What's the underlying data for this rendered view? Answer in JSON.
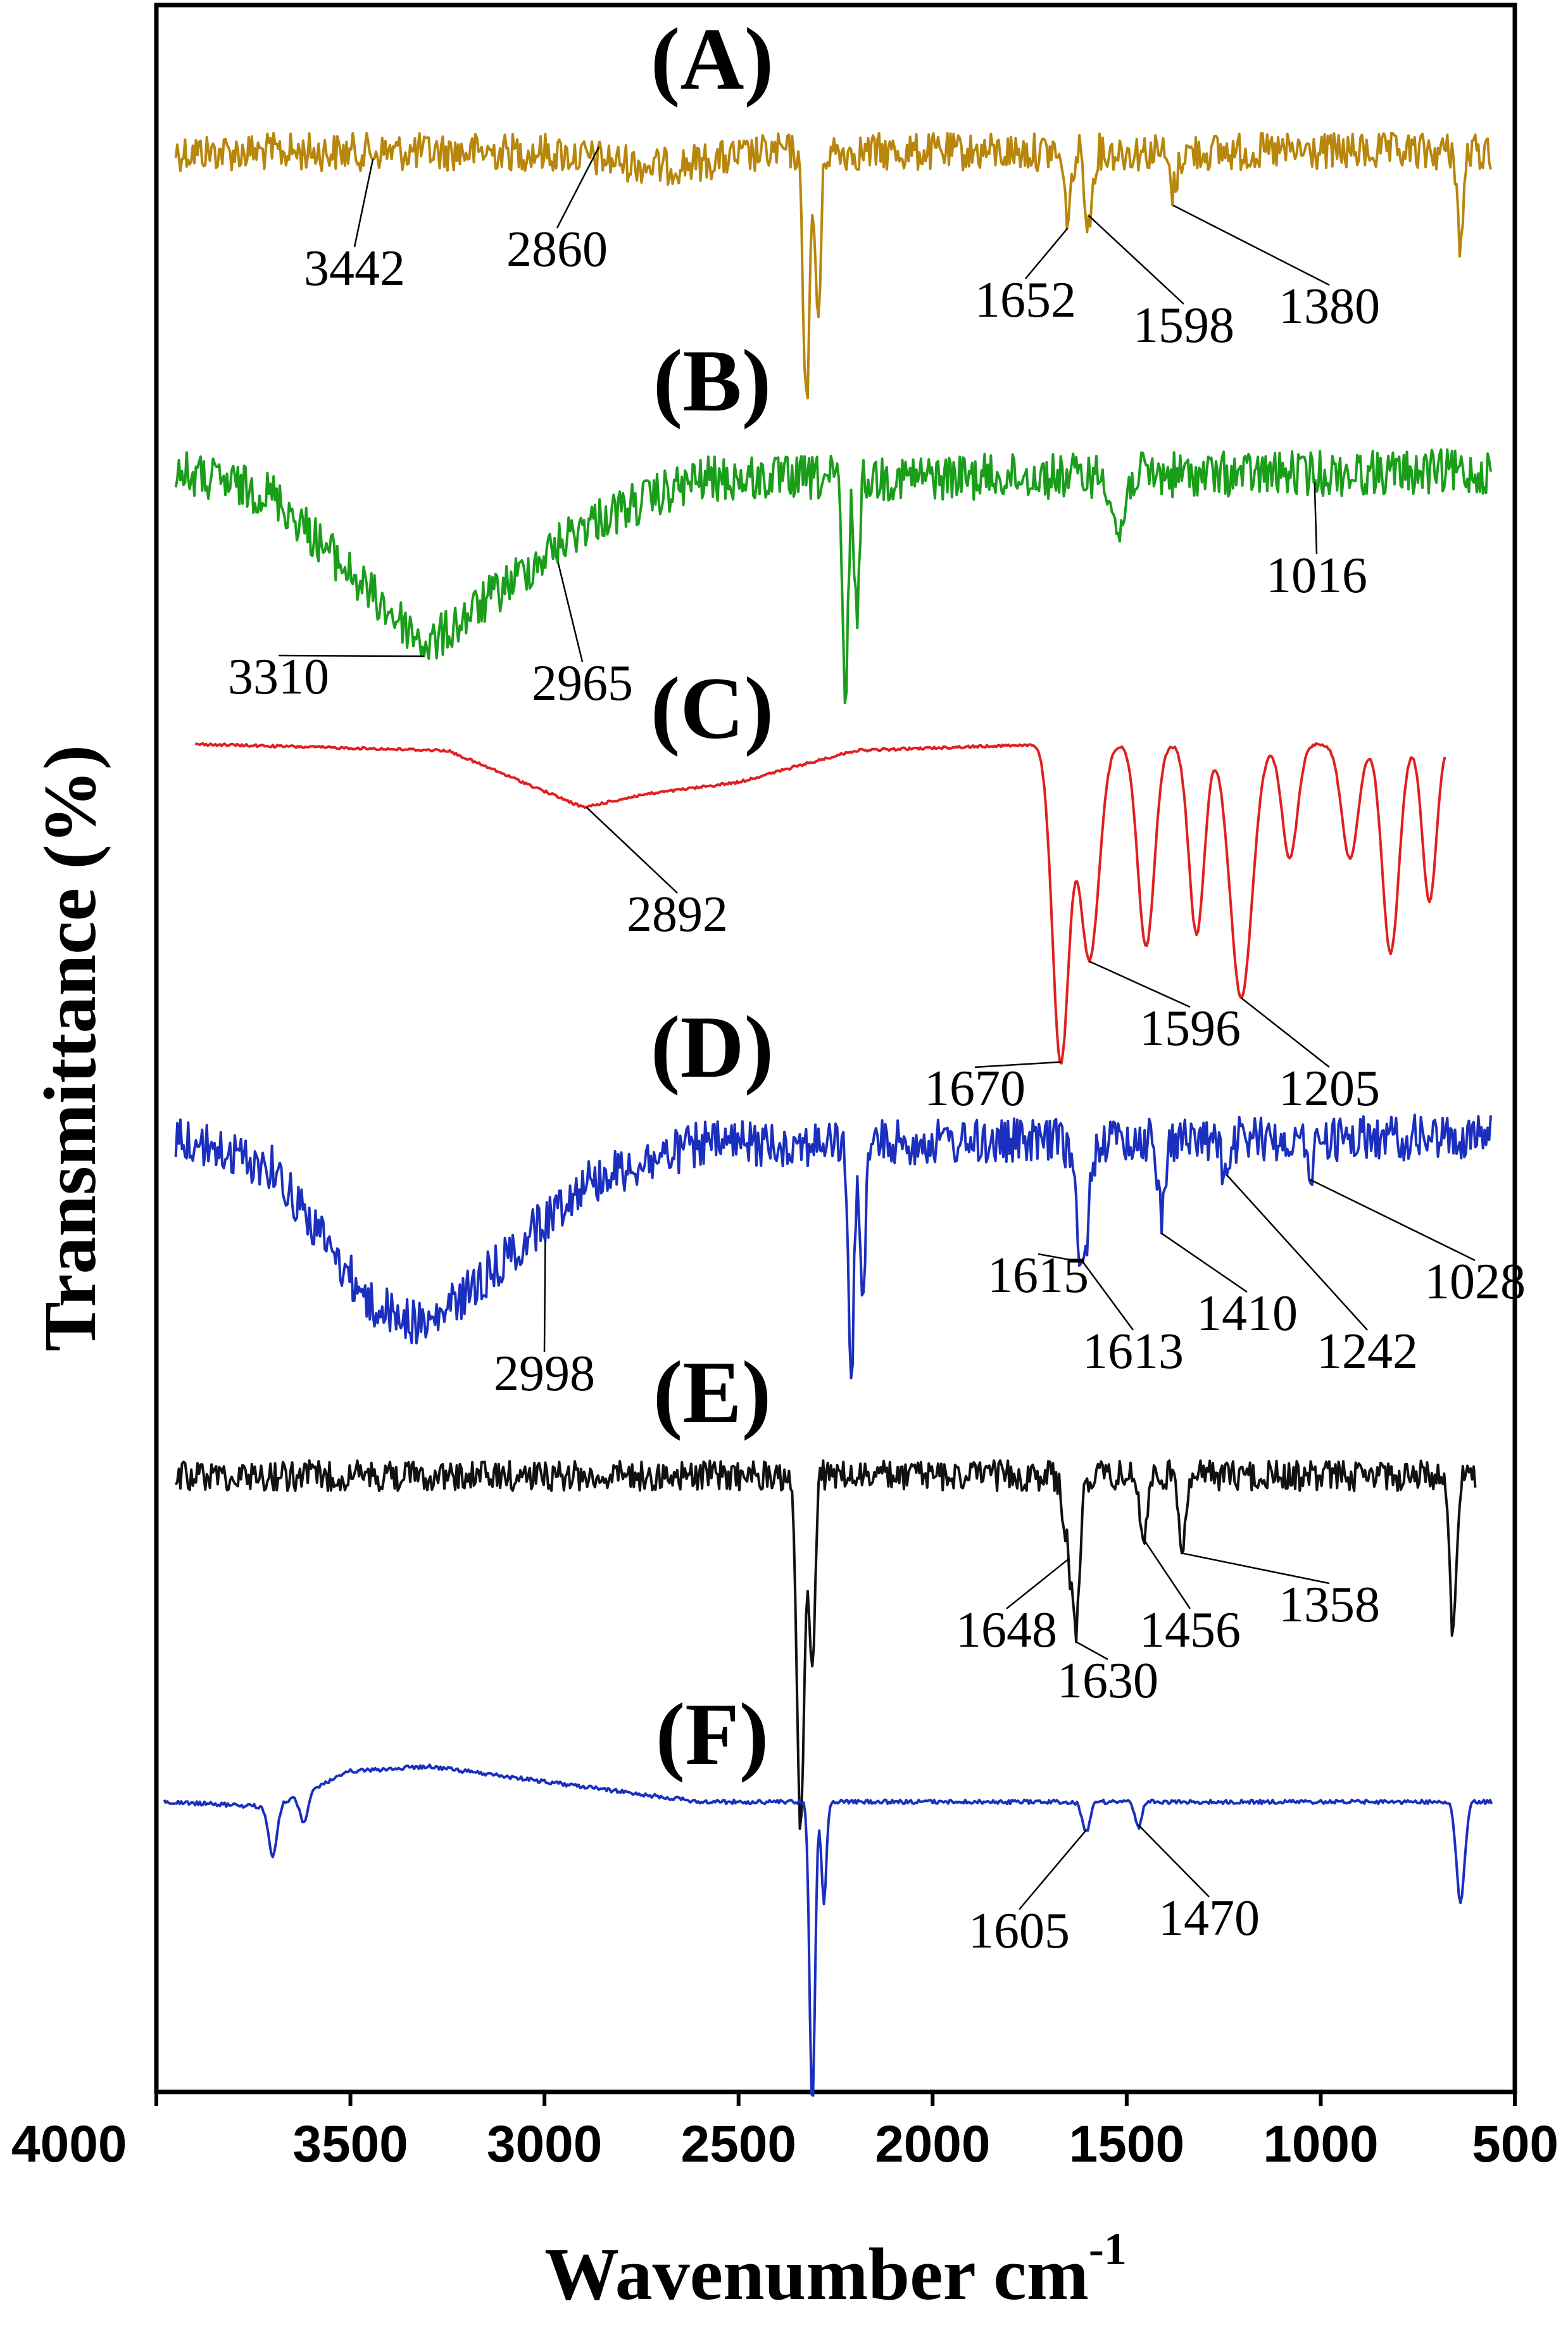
{
  "chart_data": {
    "type": "line",
    "title": "",
    "xlabel": "Wavenumber cm",
    "xlabel_superscript": "-1",
    "ylabel": "Transmittance (%)",
    "xlim": [
      4000,
      500
    ],
    "x_ticks": [
      4000,
      3500,
      3000,
      2500,
      2000,
      1500,
      1000,
      500
    ],
    "y_ticks": [],
    "grid": false,
    "legend": "none",
    "series": [
      {
        "name": "(A)",
        "color": "#b8860b",
        "x_range": [
          3950,
          560
        ],
        "noise": 0.5,
        "baseline": [
          [
            3950,
            0
          ],
          [
            3000,
            0
          ],
          [
            2700,
            0.2
          ],
          [
            2400,
            0
          ],
          [
            560,
            0
          ]
        ],
        "peaks": [
          {
            "x": 2325,
            "depth": 3.2,
            "width": 12
          },
          {
            "x": 2295,
            "depth": 2.2,
            "width": 10
          },
          {
            "x": 1652,
            "depth": 0.8,
            "width": 14
          },
          {
            "x": 1598,
            "depth": 1.0,
            "width": 12
          },
          {
            "x": 1380,
            "depth": 0.5,
            "width": 15
          },
          {
            "x": 640,
            "depth": 1.3,
            "width": 10
          }
        ],
        "annotations": [
          {
            "text": "3442",
            "x": 3442
          },
          {
            "text": "2860",
            "x": 2860
          },
          {
            "text": "1652",
            "x": 1652
          },
          {
            "text": "1598",
            "x": 1598
          },
          {
            "text": "1380",
            "x": 1380
          }
        ]
      },
      {
        "name": "(B)",
        "color": "#1a9e1a",
        "x_range": [
          3950,
          560
        ],
        "noise": 0.6,
        "baseline": [
          [
            3950,
            0
          ],
          [
            3700,
            0.3
          ],
          [
            3450,
            1.6
          ],
          [
            3300,
            2.3
          ],
          [
            3100,
            1.5
          ],
          [
            2900,
            0.7
          ],
          [
            2600,
            0.1
          ],
          [
            560,
            0
          ]
        ],
        "peaks": [
          {
            "x": 2225,
            "depth": 3.0,
            "width": 10
          },
          {
            "x": 2195,
            "depth": 1.8,
            "width": 9
          },
          {
            "x": 1520,
            "depth": 0.8,
            "width": 20
          }
        ],
        "annotations": [
          {
            "text": "3310",
            "x": 3310
          },
          {
            "text": "2965",
            "x": 2965
          },
          {
            "text": "1016",
            "x": 1016
          }
        ]
      },
      {
        "name": "(C)",
        "color": "#e02020",
        "x_range": [
          3900,
          680
        ],
        "noise": 0.04,
        "baseline": [
          [
            3900,
            0
          ],
          [
            3250,
            0.1
          ],
          [
            2900,
            1.0
          ],
          [
            2750,
            0.8
          ],
          [
            2500,
            0.6
          ],
          [
            2200,
            0.1
          ],
          [
            1700,
            0
          ],
          [
            680,
            0
          ]
        ],
        "peaks": [
          {
            "x": 1670,
            "depth": 5.0,
            "width": 30
          },
          {
            "x": 1596,
            "depth": 3.4,
            "width": 35
          },
          {
            "x": 1450,
            "depth": 3.2,
            "width": 30
          },
          {
            "x": 1320,
            "depth": 3.0,
            "width": 28
          },
          {
            "x": 1205,
            "depth": 4.0,
            "width": 40
          },
          {
            "x": 1080,
            "depth": 1.8,
            "width": 28
          },
          {
            "x": 925,
            "depth": 1.8,
            "width": 30
          },
          {
            "x": 820,
            "depth": 3.3,
            "width": 30
          },
          {
            "x": 720,
            "depth": 2.5,
            "width": 25
          }
        ],
        "annotations": [
          {
            "text": "2892",
            "x": 2892
          },
          {
            "text": "1670",
            "x": 1670
          },
          {
            "text": "1596",
            "x": 1596
          },
          {
            "text": "1205",
            "x": 1205
          }
        ]
      },
      {
        "name": "(D)",
        "color": "#1b2fbf",
        "x_range": [
          3950,
          560
        ],
        "noise": 0.6,
        "baseline": [
          [
            3950,
            0
          ],
          [
            3700,
            0.4
          ],
          [
            3450,
            2.2
          ],
          [
            3300,
            2.5
          ],
          [
            3100,
            1.6
          ],
          [
            2900,
            0.6
          ],
          [
            2600,
            0.1
          ],
          [
            560,
            0
          ]
        ],
        "peaks": [
          {
            "x": 2210,
            "depth": 3.3,
            "width": 10
          },
          {
            "x": 2180,
            "depth": 2.3,
            "width": 9
          },
          {
            "x": 1615,
            "depth": 0.9,
            "width": 25
          },
          {
            "x": 1613,
            "depth": 0.9,
            "width": 15
          },
          {
            "x": 1410,
            "depth": 1.0,
            "width": 12
          },
          {
            "x": 1242,
            "depth": 0.6,
            "width": 15
          },
          {
            "x": 1028,
            "depth": 0.4,
            "width": 15
          }
        ],
        "annotations": [
          {
            "text": "2998",
            "x": 2998
          },
          {
            "text": "1615",
            "x": 1615
          },
          {
            "text": "1613",
            "x": 1613
          },
          {
            "text": "1410",
            "x": 1410
          },
          {
            "text": "1242",
            "x": 1242
          },
          {
            "text": "1028",
            "x": 1028
          }
        ]
      },
      {
        "name": "(E)",
        "color": "#111111",
        "x_range": [
          3950,
          600
        ],
        "noise": 0.4,
        "baseline": [
          [
            3950,
            0
          ],
          [
            560,
            0
          ]
        ],
        "peaks": [
          {
            "x": 2340,
            "depth": 4.6,
            "width": 14
          },
          {
            "x": 2310,
            "depth": 2.5,
            "width": 10
          },
          {
            "x": 1648,
            "depth": 0.9,
            "width": 20
          },
          {
            "x": 1630,
            "depth": 1.6,
            "width": 14
          },
          {
            "x": 1456,
            "depth": 0.8,
            "width": 14
          },
          {
            "x": 1358,
            "depth": 0.9,
            "width": 12
          },
          {
            "x": 660,
            "depth": 2.0,
            "width": 12
          }
        ],
        "annotations": [
          {
            "text": "1648",
            "x": 1648
          },
          {
            "text": "1630",
            "x": 1630
          },
          {
            "text": "1456",
            "x": 1456
          },
          {
            "text": "1358",
            "x": 1358
          }
        ]
      },
      {
        "name": "(F)",
        "color": "#1b2fbf",
        "x_range": [
          3980,
          560
        ],
        "noise": 0.08,
        "baseline": [
          [
            3980,
            0
          ],
          [
            3700,
            0.1
          ],
          [
            3500,
            -0.6
          ],
          [
            3300,
            -0.7
          ],
          [
            3000,
            -0.4
          ],
          [
            2600,
            0
          ],
          [
            560,
            0
          ]
        ],
        "peaks": [
          {
            "x": 3700,
            "depth": 1.0,
            "width": 15
          },
          {
            "x": 3620,
            "depth": 0.6,
            "width": 15
          },
          {
            "x": 2310,
            "depth": 6.0,
            "width": 10
          },
          {
            "x": 2280,
            "depth": 2.0,
            "width": 9
          },
          {
            "x": 1605,
            "depth": 0.6,
            "width": 14
          },
          {
            "x": 1470,
            "depth": 0.5,
            "width": 12
          },
          {
            "x": 640,
            "depth": 2.0,
            "width": 15
          }
        ],
        "annotations": [
          {
            "text": "1605",
            "x": 1605
          },
          {
            "text": "1470",
            "x": 1470
          }
        ]
      }
    ]
  }
}
